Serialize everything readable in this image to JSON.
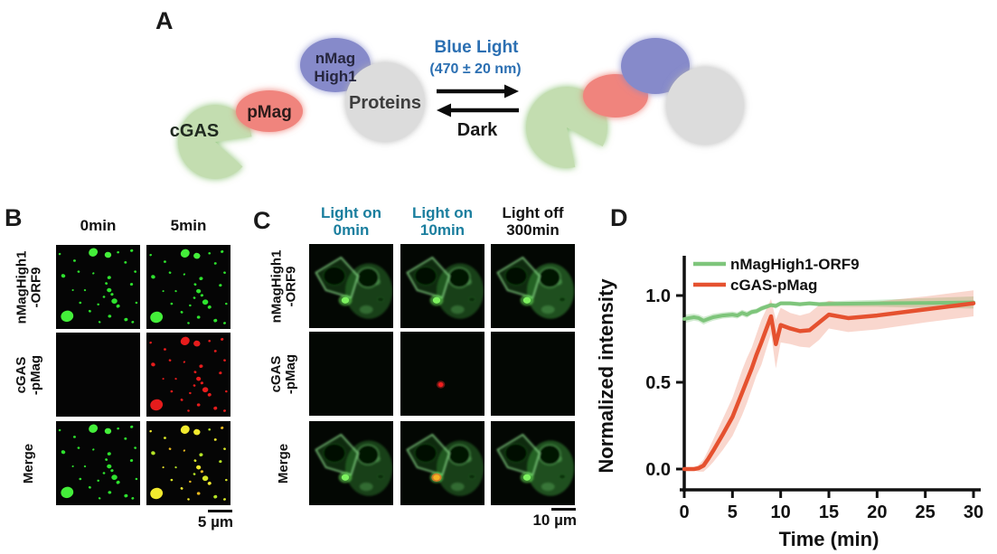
{
  "panels": {
    "A": {
      "label": "A",
      "molecules": {
        "cgas": "cGAS",
        "pmag": "pMag",
        "nmag_line1": "nMag",
        "nmag_line2": "High1",
        "proteins": "Proteins"
      },
      "forward_label_line1": "Blue Light",
      "forward_label_line2": "(470 ± 20 nm)",
      "reverse_label": "Dark",
      "colors": {
        "blue_text": "#2b6fb2",
        "green_shape": "#c3ddb0",
        "red_shape": "#f0847d",
        "purple_shape": "#868aca",
        "gray_shape": "#dcdcdc"
      }
    },
    "B": {
      "label": "B",
      "col_headers": [
        "0min",
        "5min"
      ],
      "row_labels": [
        [
          "nMagHigh1",
          "-ORF9"
        ],
        [
          "cGAS",
          "-pMag"
        ],
        [
          "Merge"
        ]
      ],
      "cells": [
        [
          "green-jitter",
          "green"
        ],
        [
          "empty",
          "red"
        ],
        [
          "green-jitter",
          "yellow"
        ]
      ],
      "scale_bar": "5 µm"
    },
    "C": {
      "label": "C",
      "col_headers": [
        [
          "Light on",
          "0min"
        ],
        [
          "Light on",
          "10min"
        ],
        [
          "Light off",
          "300min"
        ]
      ],
      "header_colors": [
        "#1a7e9e",
        "#1a7e9e",
        "#111111"
      ],
      "row_labels": [
        [
          "nMagHigh1",
          "-ORF9"
        ],
        [
          "cGAS",
          "-pMag"
        ],
        [
          "Merge"
        ]
      ],
      "cells": [
        [
          "cell",
          "cell",
          "cell-bright"
        ],
        [
          "black",
          "black-reddot",
          "black"
        ],
        [
          "cell",
          "cell-orange",
          "cell-bright"
        ]
      ],
      "scale_bar": "10 µm"
    },
    "D": {
      "label": "D"
    }
  },
  "chart_data": {
    "type": "line",
    "title": "",
    "xlabel": "Time (min)",
    "ylabel": "Normalized intensity",
    "xlim": [
      0,
      30
    ],
    "ylim": [
      0.0,
      1.0
    ],
    "xticks": [
      0,
      5,
      10,
      15,
      20,
      25,
      30
    ],
    "yticks": [
      0.0,
      0.5,
      1.0
    ],
    "grid": false,
    "legend_position": "top-left-inside",
    "series": [
      {
        "name": "nMagHigh1-ORF9",
        "color": "#7ec57b",
        "band_color": "rgba(126,197,123,0.35)",
        "x": [
          0,
          1,
          1.5,
          2,
          2.5,
          3,
          4,
          5,
          5.5,
          6,
          6.5,
          7,
          7.5,
          8,
          9,
          9.5,
          10,
          11,
          12,
          13,
          14,
          15,
          17,
          20,
          25,
          30
        ],
        "y": [
          0.865,
          0.875,
          0.87,
          0.855,
          0.865,
          0.875,
          0.885,
          0.89,
          0.885,
          0.9,
          0.89,
          0.905,
          0.91,
          0.925,
          0.945,
          0.94,
          0.955,
          0.955,
          0.95,
          0.955,
          0.95,
          0.952,
          0.953,
          0.955,
          0.957,
          0.96
        ],
        "band": [
          0.025,
          0.02,
          0.02,
          0.022,
          0.02,
          0.02,
          0.018,
          0.018,
          0.018,
          0.018,
          0.018,
          0.015,
          0.015,
          0.015,
          0.012,
          0.015,
          0.012,
          0.012,
          0.012,
          0.012,
          0.012,
          0.015,
          0.018,
          0.02,
          0.028,
          0.035
        ]
      },
      {
        "name": "cGAS-pMag",
        "color": "#e5512f",
        "band_color": "rgba(231,96,60,0.25)",
        "x": [
          0,
          1,
          1.5,
          2,
          2.5,
          3,
          4,
          5,
          5.5,
          6,
          6.5,
          7,
          7.5,
          8,
          9,
          9.5,
          10,
          11,
          12,
          13,
          14,
          15,
          17,
          20,
          25,
          30
        ],
        "y": [
          0.0,
          0.0,
          0.005,
          0.02,
          0.06,
          0.105,
          0.2,
          0.3,
          0.37,
          0.44,
          0.51,
          0.58,
          0.66,
          0.73,
          0.88,
          0.72,
          0.83,
          0.81,
          0.795,
          0.8,
          0.845,
          0.89,
          0.87,
          0.885,
          0.92,
          0.955
        ],
        "band": [
          0.01,
          0.01,
          0.02,
          0.035,
          0.05,
          0.065,
          0.09,
          0.11,
          0.12,
          0.13,
          0.13,
          0.12,
          0.12,
          0.13,
          0.1,
          0.14,
          0.1,
          0.09,
          0.09,
          0.1,
          0.1,
          0.08,
          0.08,
          0.08,
          0.075,
          0.075
        ]
      }
    ]
  }
}
